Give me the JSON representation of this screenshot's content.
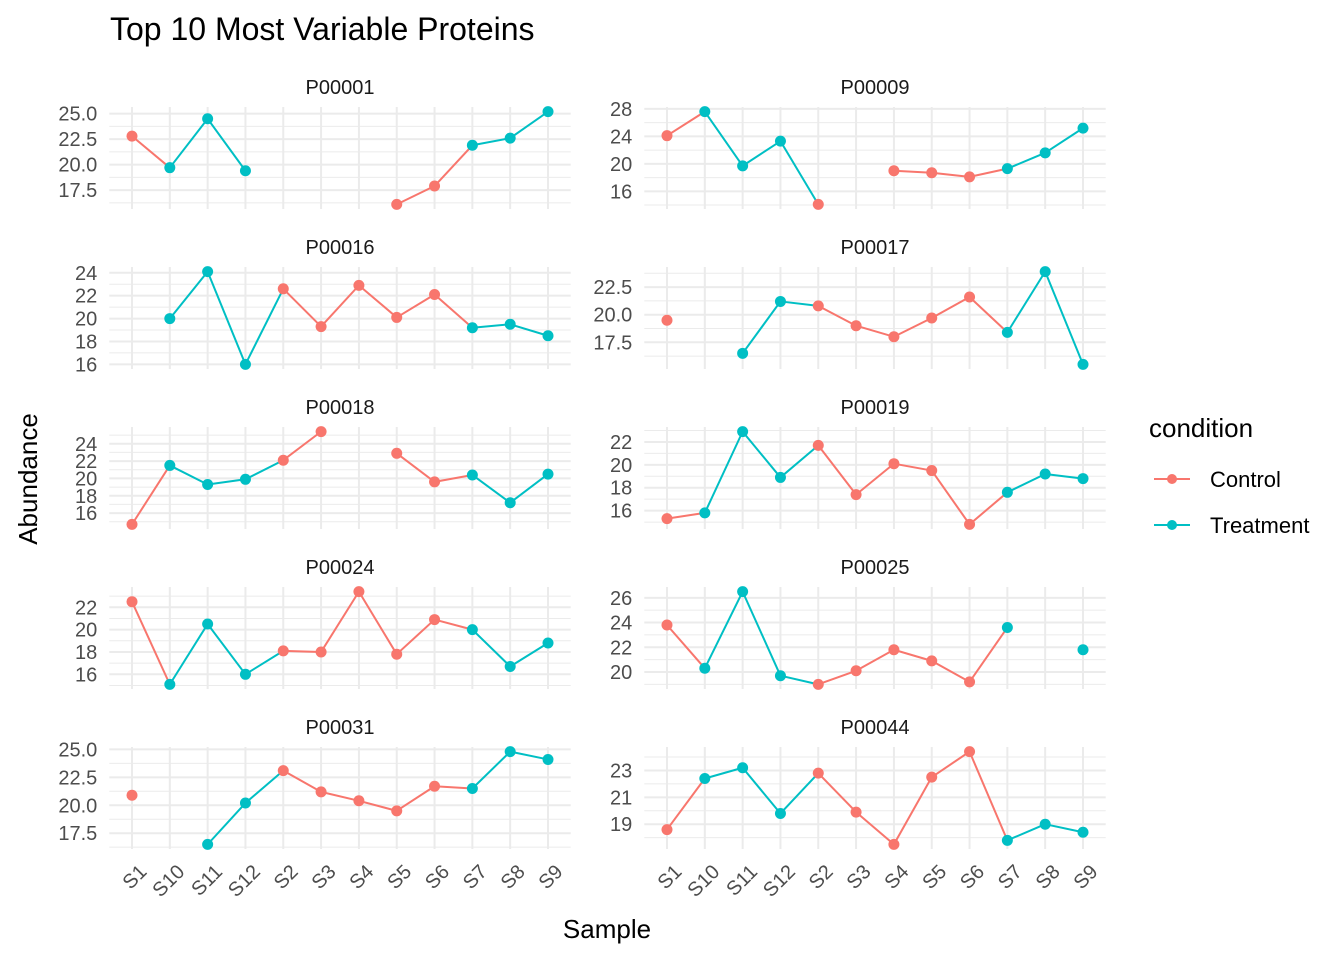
{
  "chart_data": {
    "type": "line",
    "title": "Top 10 Most Variable Proteins",
    "xlabel": "Sample",
    "ylabel": "Abundance",
    "grid": true,
    "legend": {
      "title": "condition",
      "placement": "right",
      "entries": [
        "Control",
        "Treatment"
      ]
    },
    "colors": {
      "Control": "#F8766D",
      "Treatment": "#00BFC4"
    },
    "categories": [
      "S1",
      "S10",
      "S11",
      "S12",
      "S2",
      "S3",
      "S4",
      "S5",
      "S6",
      "S7",
      "S8",
      "S9"
    ],
    "conditions": [
      "Control",
      "Treatment",
      "Treatment",
      "Treatment",
      "Control",
      "Control",
      "Control",
      "Control",
      "Control",
      "Treatment",
      "Treatment",
      "Treatment"
    ],
    "panels": [
      {
        "title": "P00001",
        "yticks": [
          "17.5",
          "20.0",
          "22.5",
          "25.0"
        ],
        "values": [
          22.8,
          19.7,
          24.5,
          19.4,
          null,
          null,
          null,
          16.1,
          17.9,
          21.9,
          22.6,
          25.2
        ]
      },
      {
        "title": "P00009",
        "yticks": [
          "16",
          "20",
          "24",
          "28"
        ],
        "values": [
          24.1,
          27.6,
          19.7,
          23.3,
          14.1,
          null,
          19.0,
          18.7,
          18.1,
          19.3,
          21.6,
          25.2
        ]
      },
      {
        "title": "P00016",
        "yticks": [
          "16",
          "18",
          "20",
          "22",
          "24"
        ],
        "values": [
          null,
          20.0,
          24.1,
          16.0,
          22.6,
          19.3,
          22.9,
          20.1,
          22.1,
          19.2,
          19.5,
          18.5
        ]
      },
      {
        "title": "P00017",
        "yticks": [
          "17.5",
          "20.0",
          "22.5"
        ],
        "values": [
          19.5,
          null,
          16.5,
          21.2,
          20.8,
          19.0,
          18.0,
          19.7,
          21.6,
          18.4,
          23.9,
          15.5
        ]
      },
      {
        "title": "P00018",
        "yticks": [
          "16",
          "18",
          "20",
          "22",
          "24"
        ],
        "values": [
          14.7,
          21.5,
          19.3,
          19.9,
          22.1,
          25.4,
          null,
          22.9,
          19.6,
          20.4,
          17.2,
          20.5
        ]
      },
      {
        "title": "P00019",
        "yticks": [
          "16",
          "18",
          "20",
          "22"
        ],
        "values": [
          15.3,
          15.8,
          22.9,
          18.9,
          21.7,
          17.4,
          20.1,
          19.5,
          14.8,
          17.6,
          19.2,
          18.8
        ]
      },
      {
        "title": "P00024",
        "yticks": [
          "16",
          "18",
          "20",
          "22"
        ],
        "values": [
          22.5,
          15.1,
          20.5,
          16.0,
          18.1,
          18.0,
          23.4,
          17.8,
          20.9,
          20.0,
          16.7,
          18.8
        ]
      },
      {
        "title": "P00025",
        "yticks": [
          "20",
          "22",
          "24",
          "26"
        ],
        "values": [
          23.8,
          20.3,
          26.5,
          19.7,
          19.0,
          20.1,
          21.8,
          20.9,
          19.2,
          23.6,
          null,
          21.8
        ]
      },
      {
        "title": "P00031",
        "yticks": [
          "17.5",
          "20.0",
          "22.5",
          "25.0"
        ],
        "values": [
          20.9,
          null,
          16.5,
          20.2,
          23.1,
          21.2,
          20.4,
          19.5,
          21.7,
          21.5,
          24.8,
          24.1
        ]
      },
      {
        "title": "P00044",
        "yticks": [
          "19",
          "21",
          "23"
        ],
        "values": [
          18.6,
          22.4,
          23.2,
          19.8,
          22.8,
          19.9,
          17.5,
          22.5,
          24.4,
          17.8,
          19.0,
          18.4
        ]
      }
    ]
  }
}
